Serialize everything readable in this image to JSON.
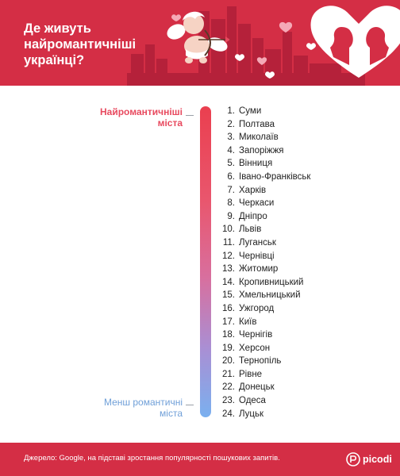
{
  "header": {
    "title_lines": [
      "Де живуть",
      "найромантичніші",
      "українці?"
    ]
  },
  "scale": {
    "top_label_lines": [
      "Найромантичніші",
      "міста"
    ],
    "bottom_label_lines": [
      "Менш романтичні",
      "міста"
    ]
  },
  "ranking": [
    {
      "num": "1.",
      "city": "Суми"
    },
    {
      "num": "2.",
      "city": "Полтава"
    },
    {
      "num": "3.",
      "city": "Миколаїв"
    },
    {
      "num": "4.",
      "city": "Запоріжжя"
    },
    {
      "num": "5.",
      "city": "Вінниця"
    },
    {
      "num": "6.",
      "city": "Івано-Франківськ"
    },
    {
      "num": "7.",
      "city": "Харків"
    },
    {
      "num": "8.",
      "city": "Черкаси"
    },
    {
      "num": "9.",
      "city": "Дніпро"
    },
    {
      "num": "10.",
      "city": "Львів"
    },
    {
      "num": "11.",
      "city": "Луганськ"
    },
    {
      "num": "12.",
      "city": "Чернівці"
    },
    {
      "num": "13.",
      "city": "Житомир"
    },
    {
      "num": "14.",
      "city": "Кропивницький"
    },
    {
      "num": "15.",
      "city": "Хмельницький"
    },
    {
      "num": "16.",
      "city": "Ужгород"
    },
    {
      "num": "17.",
      "city": "Київ"
    },
    {
      "num": "18.",
      "city": "Чернігів"
    },
    {
      "num": "19.",
      "city": "Херсон"
    },
    {
      "num": "20.",
      "city": "Тернопіль"
    },
    {
      "num": "21.",
      "city": "Рівне"
    },
    {
      "num": "22.",
      "city": "Донецьк"
    },
    {
      "num": "23.",
      "city": "Одеса"
    },
    {
      "num": "24.",
      "city": "Луцьк"
    }
  ],
  "footer": {
    "source": "Джерело: Google, на підставі зростання популярності пошукових запитів.",
    "brand": "picodi"
  },
  "colors": {
    "brand_red": "#d42e45",
    "gradient_top": "#ea3f4f",
    "gradient_bottom": "#7ab0ef",
    "top_label": "#e84a5f",
    "bottom_label": "#6f9fd8"
  },
  "icons": [
    "cupid-illustration",
    "heart-icon",
    "couple-silhouette-icon",
    "picodi-logo-icon"
  ]
}
